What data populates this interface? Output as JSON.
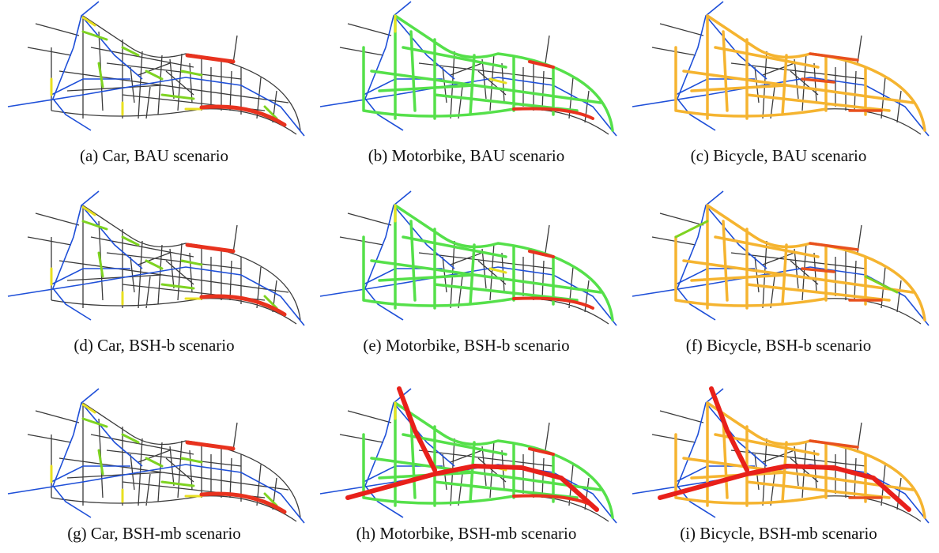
{
  "figure": {
    "panels": [
      {
        "caption": "(a) Car, BAU scenario"
      },
      {
        "caption": "(b) Motorbike, BAU scenario"
      },
      {
        "caption": "(c) Bicycle, BAU scenario"
      },
      {
        "caption": "(d) Car, BSH-b scenario"
      },
      {
        "caption": "(e) Motorbike, BSH-b scenario"
      },
      {
        "caption": "(f) Bicycle, BSH-b scenario"
      },
      {
        "caption": "(g) Car, BSH-mb scenario"
      },
      {
        "caption": "(h) Motorbike, BSH-mb scenario"
      },
      {
        "caption": "(i) Bicycle, BSH-mb scenario"
      }
    ]
  }
}
